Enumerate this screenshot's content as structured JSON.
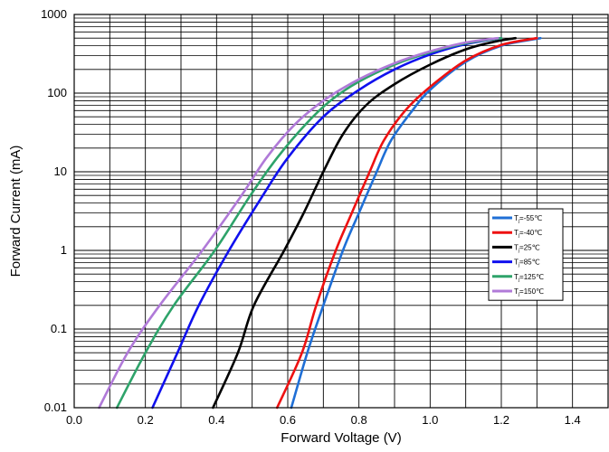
{
  "chart_data": {
    "type": "line",
    "title": "",
    "xlabel": "Forward Voltage (V)",
    "ylabel": "Forward Current (mA)",
    "x_scale": "linear",
    "y_scale": "log",
    "xlim": [
      0.0,
      1.5
    ],
    "ylim": [
      0.01,
      1000
    ],
    "x_ticks": [
      "0.0",
      "0.2",
      "0.4",
      "0.6",
      "0.8",
      "1.0",
      "1.2",
      "1.4"
    ],
    "y_ticks": [
      "0.01",
      "0.1",
      "1",
      "10",
      "100",
      "1000"
    ],
    "grid": true,
    "legend_position": "right",
    "series": [
      {
        "name": "T",
        "sub": "j",
        "suffix": "=-55℃",
        "color": "#1f6fd6",
        "points": [
          [
            0.61,
            0.01
          ],
          [
            0.655,
            0.05
          ],
          [
            0.7,
            0.2
          ],
          [
            0.755,
            1
          ],
          [
            0.8,
            3
          ],
          [
            0.85,
            10
          ],
          [
            0.89,
            25
          ],
          [
            0.95,
            60
          ],
          [
            1.0,
            110
          ],
          [
            1.1,
            250
          ],
          [
            1.2,
            400
          ],
          [
            1.31,
            500
          ]
        ]
      },
      {
        "name": "T",
        "sub": "j",
        "suffix": "=-40℃",
        "color": "#ee1111",
        "points": [
          [
            0.57,
            0.01
          ],
          [
            0.64,
            0.05
          ],
          [
            0.68,
            0.2
          ],
          [
            0.735,
            1
          ],
          [
            0.78,
            3
          ],
          [
            0.83,
            10
          ],
          [
            0.87,
            25
          ],
          [
            0.93,
            60
          ],
          [
            1.0,
            120
          ],
          [
            1.1,
            260
          ],
          [
            1.2,
            410
          ],
          [
            1.3,
            500
          ]
        ]
      },
      {
        "name": "T",
        "sub": "j",
        "suffix": "=25℃",
        "color": "#000000",
        "points": [
          [
            0.39,
            0.01
          ],
          [
            0.46,
            0.05
          ],
          [
            0.505,
            0.2
          ],
          [
            0.59,
            1
          ],
          [
            0.645,
            3
          ],
          [
            0.7,
            10
          ],
          [
            0.755,
            30
          ],
          [
            0.82,
            70
          ],
          [
            0.9,
            130
          ],
          [
            1.0,
            230
          ],
          [
            1.1,
            360
          ],
          [
            1.18,
            450
          ],
          [
            1.24,
            500
          ]
        ]
      },
      {
        "name": "T",
        "sub": "j",
        "suffix": "=85℃",
        "color": "#1010ee",
        "points": [
          [
            0.22,
            0.01
          ],
          [
            0.29,
            0.05
          ],
          [
            0.35,
            0.2
          ],
          [
            0.435,
            1
          ],
          [
            0.53,
            5
          ],
          [
            0.6,
            15
          ],
          [
            0.7,
            50
          ],
          [
            0.8,
            110
          ],
          [
            0.9,
            200
          ],
          [
            1.0,
            310
          ],
          [
            1.1,
            420
          ],
          [
            1.2,
            500
          ]
        ]
      },
      {
        "name": "T",
        "sub": "j",
        "suffix": "=125℃",
        "color": "#2ea36a",
        "points": [
          [
            0.12,
            0.01
          ],
          [
            0.2,
            0.05
          ],
          [
            0.28,
            0.2
          ],
          [
            0.395,
            1
          ],
          [
            0.495,
            5
          ],
          [
            0.57,
            15
          ],
          [
            0.65,
            40
          ],
          [
            0.72,
            80
          ],
          [
            0.8,
            140
          ],
          [
            0.9,
            230
          ],
          [
            1.0,
            330
          ],
          [
            1.1,
            430
          ],
          [
            1.2,
            500
          ]
        ]
      },
      {
        "name": "T",
        "sub": "j",
        "suffix": "=150℃",
        "color": "#b07ad8",
        "points": [
          [
            0.07,
            0.01
          ],
          [
            0.15,
            0.05
          ],
          [
            0.24,
            0.2
          ],
          [
            0.36,
            1
          ],
          [
            0.47,
            5
          ],
          [
            0.54,
            15
          ],
          [
            0.62,
            40
          ],
          [
            0.7,
            80
          ],
          [
            0.8,
            150
          ],
          [
            0.9,
            240
          ],
          [
            1.0,
            340
          ],
          [
            1.1,
            440
          ],
          [
            1.19,
            500
          ]
        ]
      }
    ]
  }
}
